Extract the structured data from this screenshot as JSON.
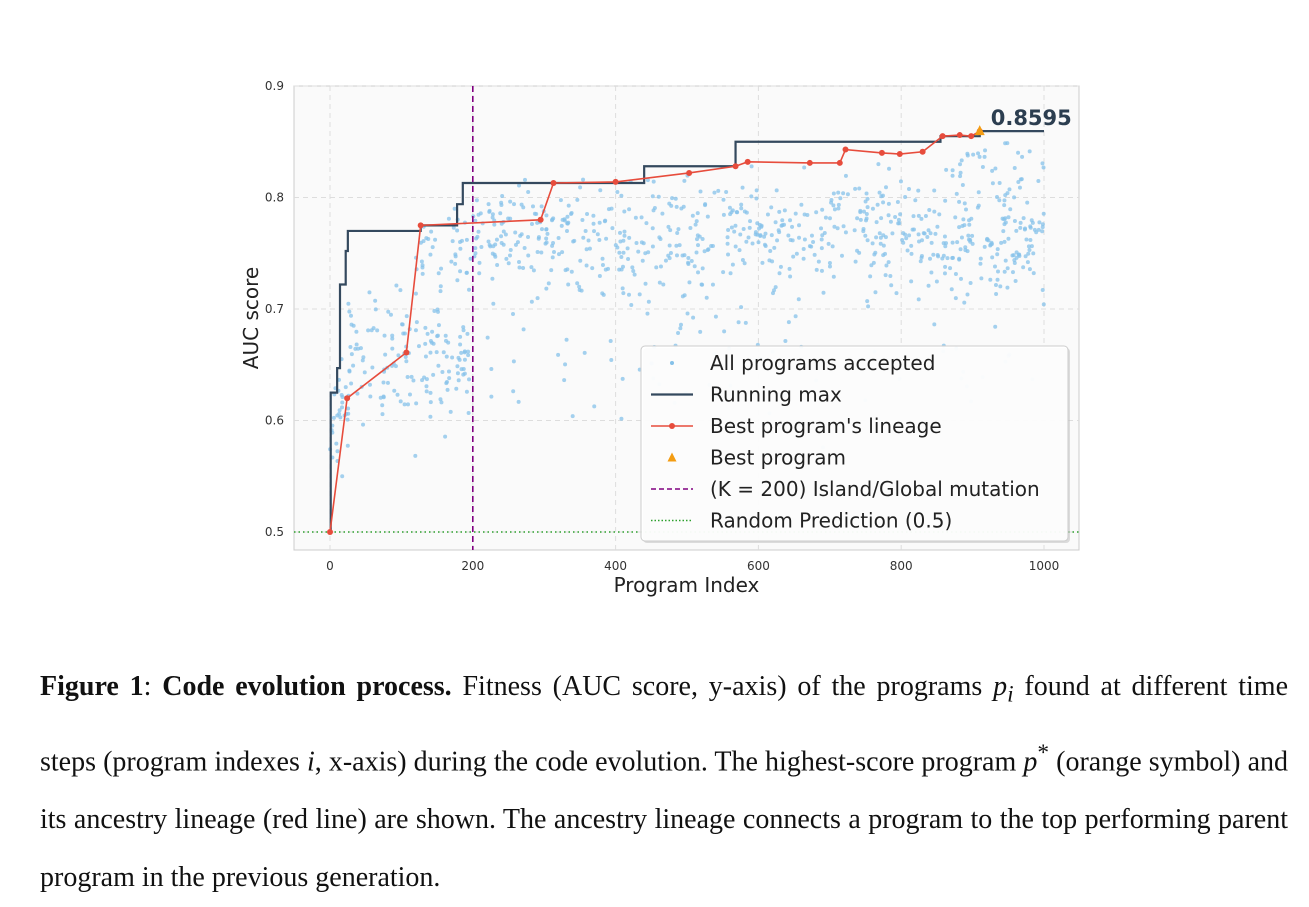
{
  "chart_data": {
    "type": "scatter",
    "xlabel": "Program Index",
    "ylabel": "AUC score",
    "xlim": [
      -50,
      1050
    ],
    "ylim": [
      0.5,
      0.9
    ],
    "xticks": [
      0,
      200,
      400,
      600,
      800,
      1000
    ],
    "yticks": [
      0.5,
      0.6,
      0.7,
      0.8,
      0.9
    ],
    "grid": true,
    "legend_position": "lower-right",
    "legend": [
      {
        "label": "All programs accepted",
        "kind": "dots",
        "color": "#85c1e9"
      },
      {
        "label": "Running max",
        "kind": "line",
        "color": "#34495e"
      },
      {
        "label": "Best program's lineage",
        "kind": "line-marker",
        "color": "#e74c3c"
      },
      {
        "label": "Best program",
        "kind": "triangle",
        "color": "#f39c12"
      },
      {
        "label": "(K = 200) Island/Global mutation",
        "kind": "dashed",
        "color": "#800080"
      },
      {
        "label": "Random Prediction (0.5)",
        "kind": "dotted",
        "color": "#2ca02c"
      }
    ],
    "best_program": {
      "x": 910,
      "y": 0.8595,
      "label": "0.8595"
    },
    "island_mutation_x": 200,
    "random_prediction_y": 0.5,
    "running_max": [
      [
        0,
        0.5
      ],
      [
        1,
        0.5
      ],
      [
        1,
        0.625
      ],
      [
        10,
        0.625
      ],
      [
        10,
        0.647
      ],
      [
        14,
        0.647
      ],
      [
        14,
        0.722
      ],
      [
        22,
        0.722
      ],
      [
        22,
        0.752
      ],
      [
        25,
        0.752
      ],
      [
        25,
        0.77
      ],
      [
        127,
        0.77
      ],
      [
        127,
        0.775
      ],
      [
        178,
        0.775
      ],
      [
        178,
        0.794
      ],
      [
        186,
        0.794
      ],
      [
        186,
        0.813
      ],
      [
        440,
        0.813
      ],
      [
        440,
        0.828
      ],
      [
        568,
        0.828
      ],
      [
        568,
        0.85
      ],
      [
        855,
        0.85
      ],
      [
        855,
        0.855
      ],
      [
        910,
        0.855
      ],
      [
        910,
        0.8595
      ],
      [
        1000,
        0.8595
      ]
    ],
    "lineage": [
      [
        0,
        0.5
      ],
      [
        24,
        0.62
      ],
      [
        107,
        0.661
      ],
      [
        127,
        0.775
      ],
      [
        295,
        0.78
      ],
      [
        313,
        0.813
      ],
      [
        400,
        0.814
      ],
      [
        503,
        0.822
      ],
      [
        568,
        0.828
      ],
      [
        585,
        0.832
      ],
      [
        672,
        0.831
      ],
      [
        714,
        0.831
      ],
      [
        722,
        0.843
      ],
      [
        773,
        0.84
      ],
      [
        798,
        0.839
      ],
      [
        830,
        0.841
      ],
      [
        858,
        0.855
      ],
      [
        882,
        0.856
      ],
      [
        898,
        0.855
      ],
      [
        910,
        0.8595
      ]
    ],
    "scatter_bands": [
      {
        "x_range": [
          0,
          25
        ],
        "mean": 0.6,
        "sd": 0.05,
        "count": 28
      },
      {
        "x_range": [
          25,
          200
        ],
        "mean": 0.655,
        "sd": 0.04,
        "count": 150
      },
      {
        "x_range": [
          120,
          200
        ],
        "mean": 0.75,
        "sd": 0.03,
        "count": 40
      },
      {
        "x_range": [
          200,
          1000
        ],
        "mean": 0.765,
        "sd": 0.038,
        "count": 680
      },
      {
        "x_range": [
          200,
          1000
        ],
        "mean": 0.655,
        "sd": 0.035,
        "count": 70
      },
      {
        "x_range": [
          850,
          1000
        ],
        "mean": 0.835,
        "sd": 0.015,
        "count": 25
      }
    ]
  },
  "caption": {
    "figure_label": "Figure 1",
    "colon": ":",
    "title": "Code evolution process.",
    "text_1": " Fitness (AUC score, y-axis) of the programs ",
    "var_p": "p",
    "sub_i": "i",
    "text_2": " found at different time steps (program indexes ",
    "var_i": "i",
    "text_3": ", x-axis) during the code evolution. The highest-score program ",
    "var_p2": "p",
    "sup_star": "*",
    "text_4": " (orange symbol) and its ancestry lineage (red line) are shown. The ancestry lineage connects a program to the top performing parent program in the previous generation."
  }
}
